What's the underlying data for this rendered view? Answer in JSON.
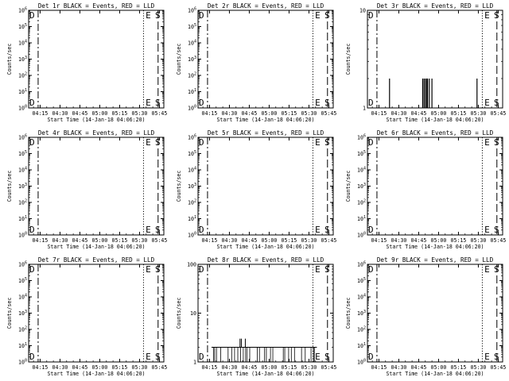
{
  "chart_data": [
    {
      "type": "line",
      "title": "Det 1r BLACK = Events, RED = LLD",
      "ylabel": "Counts/sec",
      "xlabel": "Start Time (14-Jan-18 04:06:20)",
      "yscale": "log",
      "ylim": [
        1,
        1000000
      ],
      "yticks": [
        "10^0",
        "10^1",
        "10^2",
        "10^3",
        "10^4",
        "10^5",
        "10^6"
      ],
      "xlim": [
        "04:06:20",
        "05:48:20"
      ],
      "xticks": [
        "04:15",
        "04:30",
        "04:45",
        "05:00",
        "05:15",
        "05:30",
        "05:45"
      ],
      "markers": [
        {
          "label": "D",
          "x": "04:06:20"
        },
        {
          "label": "E",
          "x": "05:34:00"
        },
        {
          "label": "S",
          "x": "05:47:10"
        }
      ],
      "vlines": [
        {
          "x": "04:13:30",
          "style": "dash-dot"
        },
        {
          "x": "05:33:00",
          "style": "dotted"
        },
        {
          "x": "05:44:00",
          "style": "long-dash"
        }
      ],
      "series": []
    },
    {
      "type": "line",
      "title": "Det 2r BLACK = Events, RED = LLD",
      "ylabel": "Counts/sec",
      "xlabel": "Start Time (14-Jan-18 04:06:20)",
      "yscale": "log",
      "ylim": [
        1,
        1000000
      ],
      "yticks": [
        "10^0",
        "10^1",
        "10^2",
        "10^3",
        "10^4",
        "10^5",
        "10^6"
      ],
      "xlim": [
        "04:06:20",
        "05:48:20"
      ],
      "xticks": [
        "04:15",
        "04:30",
        "04:45",
        "05:00",
        "05:15",
        "05:30",
        "05:45"
      ],
      "markers": [
        {
          "label": "D",
          "x": "04:06:20"
        },
        {
          "label": "E",
          "x": "05:34:00"
        },
        {
          "label": "S",
          "x": "05:47:10"
        }
      ],
      "vlines": [
        {
          "x": "04:13:30",
          "style": "dash-dot"
        },
        {
          "x": "05:33:00",
          "style": "dotted"
        },
        {
          "x": "05:44:00",
          "style": "long-dash"
        }
      ],
      "series": []
    },
    {
      "type": "line",
      "title": "Det 3r BLACK = Events, RED = LLD",
      "ylabel": "Counts/sec",
      "xlabel": "Start Time (14-Jan-18 04:06:20)",
      "yscale": "log",
      "ylim": [
        1,
        10
      ],
      "yticks": [
        "1",
        "10"
      ],
      "xlim": [
        "04:06:20",
        "05:48:20"
      ],
      "xticks": [
        "04:15",
        "04:30",
        "04:45",
        "05:00",
        "05:15",
        "05:30",
        "05:45"
      ],
      "markers": [
        {
          "label": "D",
          "x": "04:06:20"
        },
        {
          "label": "E",
          "x": "05:34:00"
        },
        {
          "label": "S",
          "x": "05:47:10"
        }
      ],
      "vlines": [
        {
          "x": "04:13:30",
          "style": "dash-dot"
        },
        {
          "x": "05:33:00",
          "style": "dotted"
        },
        {
          "x": "05:44:00",
          "style": "long-dash"
        }
      ],
      "series": [
        {
          "spikes": [
            {
              "x": "04:23:00",
              "y": 2
            },
            {
              "x": "04:48:00",
              "y": 2
            },
            {
              "x": "04:49:00",
              "y": 2
            },
            {
              "x": "04:50:00",
              "y": 2
            },
            {
              "x": "04:51:00",
              "y": 2
            },
            {
              "x": "04:51:40",
              "y": 2
            },
            {
              "x": "04:53:00",
              "y": 2
            },
            {
              "x": "04:55:00",
              "y": 2
            },
            {
              "x": "05:29:00",
              "y": 2
            }
          ]
        }
      ]
    },
    {
      "type": "line",
      "title": "Det 4r BLACK = Events, RED = LLD",
      "ylabel": "Counts/sec",
      "xlabel": "Start Time (14-Jan-18 04:06:20)",
      "yscale": "log",
      "ylim": [
        1,
        1000000
      ],
      "yticks": [
        "10^0",
        "10^1",
        "10^2",
        "10^3",
        "10^4",
        "10^5",
        "10^6"
      ],
      "xlim": [
        "04:06:20",
        "05:48:20"
      ],
      "xticks": [
        "04:15",
        "04:30",
        "04:45",
        "05:00",
        "05:15",
        "05:30",
        "05:45"
      ],
      "markers": [
        {
          "label": "D",
          "x": "04:06:20"
        },
        {
          "label": "E",
          "x": "05:34:00"
        },
        {
          "label": "S",
          "x": "05:47:10"
        }
      ],
      "vlines": [
        {
          "x": "04:13:30",
          "style": "dash-dot"
        },
        {
          "x": "05:33:00",
          "style": "dotted"
        },
        {
          "x": "05:44:00",
          "style": "long-dash"
        }
      ],
      "series": []
    },
    {
      "type": "line",
      "title": "Det 5r BLACK = Events, RED = LLD",
      "ylabel": "Counts/sec",
      "xlabel": "Start Time (14-Jan-18 04:06:20)",
      "yscale": "log",
      "ylim": [
        1,
        1000000
      ],
      "yticks": [
        "10^0",
        "10^1",
        "10^2",
        "10^3",
        "10^4",
        "10^5",
        "10^6"
      ],
      "xlim": [
        "04:06:20",
        "05:48:20"
      ],
      "xticks": [
        "04:15",
        "04:30",
        "04:45",
        "05:00",
        "05:15",
        "05:30",
        "05:45"
      ],
      "markers": [
        {
          "label": "D",
          "x": "04:06:20"
        },
        {
          "label": "E",
          "x": "05:34:00"
        },
        {
          "label": "S",
          "x": "05:47:10"
        }
      ],
      "vlines": [
        {
          "x": "04:13:30",
          "style": "dash-dot"
        },
        {
          "x": "05:33:00",
          "style": "dotted"
        },
        {
          "x": "05:44:00",
          "style": "long-dash"
        }
      ],
      "series": []
    },
    {
      "type": "line",
      "title": "Det 6r BLACK = Events, RED = LLD",
      "ylabel": "Counts/sec",
      "xlabel": "Start Time (14-Jan-18 04:06:20)",
      "yscale": "log",
      "ylim": [
        1,
        1000000
      ],
      "yticks": [
        "10^0",
        "10^1",
        "10^2",
        "10^3",
        "10^4",
        "10^5",
        "10^6"
      ],
      "xlim": [
        "04:06:20",
        "05:48:20"
      ],
      "xticks": [
        "04:15",
        "04:30",
        "04:45",
        "05:00",
        "05:15",
        "05:30",
        "05:45"
      ],
      "markers": [
        {
          "label": "D",
          "x": "04:06:20"
        },
        {
          "label": "E",
          "x": "05:34:00"
        },
        {
          "label": "S",
          "x": "05:47:10"
        }
      ],
      "vlines": [
        {
          "x": "04:13:30",
          "style": "dash-dot"
        },
        {
          "x": "05:33:00",
          "style": "dotted"
        },
        {
          "x": "05:44:00",
          "style": "long-dash"
        }
      ],
      "series": []
    },
    {
      "type": "line",
      "title": "Det 7r BLACK = Events, RED = LLD",
      "ylabel": "Counts/sec",
      "xlabel": "Start Time (14-Jan-18 04:06:20)",
      "yscale": "log",
      "ylim": [
        1,
        1000000
      ],
      "yticks": [
        "10^0",
        "10^1",
        "10^2",
        "10^3",
        "10^4",
        "10^5",
        "10^6"
      ],
      "xlim": [
        "04:06:20",
        "05:48:20"
      ],
      "xticks": [
        "04:15",
        "04:30",
        "04:45",
        "05:00",
        "05:15",
        "05:30",
        "05:45"
      ],
      "markers": [
        {
          "label": "D",
          "x": "04:06:20"
        },
        {
          "label": "E",
          "x": "05:34:00"
        },
        {
          "label": "S",
          "x": "05:47:10"
        }
      ],
      "vlines": [
        {
          "x": "04:13:30",
          "style": "dash-dot"
        },
        {
          "x": "05:33:00",
          "style": "dotted"
        },
        {
          "x": "05:44:00",
          "style": "long-dash"
        }
      ],
      "series": []
    },
    {
      "type": "line",
      "title": "Det 8r BLACK = Events, RED = LLD",
      "ylabel": "Counts/sec",
      "xlabel": "Start Time (14-Jan-18 04:06:20)",
      "yscale": "log",
      "ylim": [
        1,
        100
      ],
      "yticks": [
        "1",
        "10",
        "100"
      ],
      "xlim": [
        "04:06:20",
        "05:48:20"
      ],
      "xticks": [
        "04:15",
        "04:30",
        "04:45",
        "05:00",
        "05:15",
        "05:30",
        "05:45"
      ],
      "markers": [
        {
          "label": "D",
          "x": "04:06:20"
        },
        {
          "label": "E",
          "x": "05:34:00"
        },
        {
          "label": "S",
          "x": "05:47:10"
        }
      ],
      "vlines": [
        {
          "x": "04:13:30",
          "style": "dash-dot"
        },
        {
          "x": "05:33:00",
          "style": "dotted"
        },
        {
          "x": "05:44:00",
          "style": "long-dash"
        }
      ],
      "series": [
        {
          "band": {
            "xstart": "04:16:30",
            "xend": "05:36:00",
            "low": 1,
            "high": 2,
            "spikes": [
              {
                "x": "04:38:00",
                "y": 3
              },
              {
                "x": "04:39:00",
                "y": 3
              },
              {
                "x": "04:42:00",
                "y": 3
              }
            ]
          }
        }
      ]
    },
    {
      "type": "line",
      "title": "Det 9r BLACK = Events, RED = LLD",
      "ylabel": "Counts/sec",
      "xlabel": "Start Time (14-Jan-18 04:06:20)",
      "yscale": "log",
      "ylim": [
        1,
        1000000
      ],
      "yticks": [
        "10^0",
        "10^1",
        "10^2",
        "10^3",
        "10^4",
        "10^5",
        "10^6"
      ],
      "xlim": [
        "04:06:20",
        "05:48:20"
      ],
      "xticks": [
        "04:15",
        "04:30",
        "04:45",
        "05:00",
        "05:15",
        "05:30",
        "05:45"
      ],
      "markers": [
        {
          "label": "D",
          "x": "04:06:20"
        },
        {
          "label": "E",
          "x": "05:34:00"
        },
        {
          "label": "S",
          "x": "05:47:10"
        }
      ],
      "vlines": [
        {
          "x": "04:13:30",
          "style": "dash-dot"
        },
        {
          "x": "05:33:00",
          "style": "dotted"
        },
        {
          "x": "05:44:00",
          "style": "long-dash"
        }
      ],
      "series": []
    }
  ]
}
